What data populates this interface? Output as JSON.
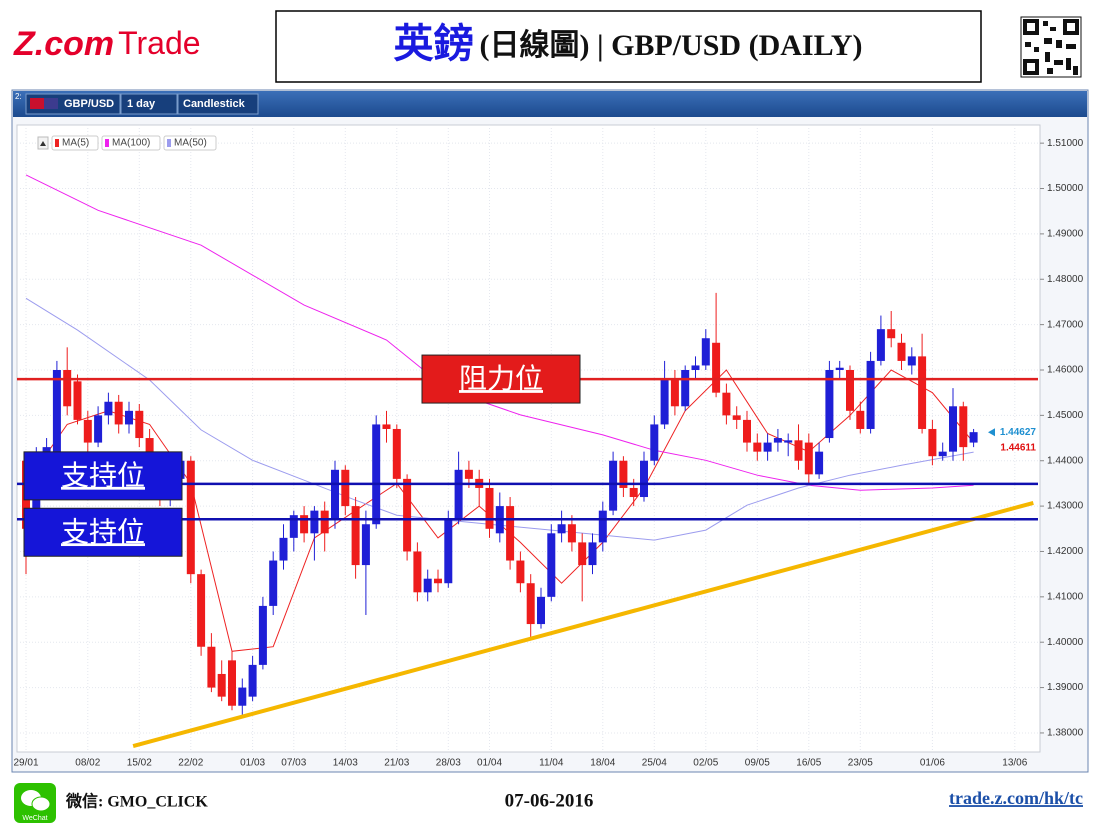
{
  "header": {
    "logo_z": "Z.com",
    "logo_trade": "Trade",
    "title_main": "英鎊",
    "title_sub": "(日線圖) | GBP/USD (DAILY)"
  },
  "toolbar": {
    "panel": "2:",
    "symbol": "GBP/USD",
    "interval": "1 day",
    "style": "Candlestick"
  },
  "chart_data": {
    "type": "candlestick",
    "categories": [
      "29/01",
      null,
      null,
      null,
      null,
      null,
      "08/02",
      null,
      null,
      null,
      null,
      "15/02",
      null,
      null,
      null,
      null,
      "22/02",
      null,
      null,
      null,
      null,
      null,
      "01/03",
      null,
      null,
      null,
      "07/03",
      null,
      null,
      null,
      null,
      "14/03",
      null,
      null,
      null,
      null,
      "21/03",
      null,
      null,
      null,
      null,
      "28/03",
      null,
      null,
      null,
      "01/04",
      null,
      null,
      null,
      null,
      null,
      "11/04",
      null,
      null,
      null,
      null,
      "18/04",
      null,
      null,
      null,
      null,
      "25/04",
      null,
      null,
      null,
      null,
      "02/05",
      null,
      null,
      null,
      null,
      "09/05",
      null,
      null,
      null,
      null,
      "16/05",
      null,
      null,
      null,
      null,
      "23/05",
      null,
      null,
      null,
      null,
      null,
      null,
      "01/06",
      null,
      null,
      null,
      null,
      null,
      null,
      null,
      "13/06"
    ],
    "open": [
      1.44,
      1.425,
      1.441,
      1.442,
      1.46,
      1.4575,
      1.449,
      1.444,
      1.45,
      1.453,
      1.448,
      1.451,
      1.445,
      1.44,
      1.432,
      1.436,
      1.44,
      1.415,
      1.399,
      1.393,
      1.396,
      1.386,
      1.388,
      1.395,
      1.408,
      1.418,
      1.423,
      1.428,
      1.424,
      1.429,
      1.427,
      1.438,
      1.43,
      1.417,
      1.426,
      1.448,
      1.447,
      1.436,
      1.42,
      1.411,
      1.414,
      1.413,
      1.427,
      1.438,
      1.436,
      1.434,
      1.424,
      1.43,
      1.418,
      1.413,
      1.404,
      1.41,
      1.424,
      1.426,
      1.422,
      1.417,
      1.422,
      1.429,
      1.44,
      1.434,
      1.432,
      1.44,
      1.448,
      1.458,
      1.452,
      1.46,
      1.461,
      1.466,
      1.455,
      1.45,
      1.449,
      1.444,
      1.442,
      1.444,
      1.444,
      1.4445,
      1.444,
      1.437,
      1.445,
      1.46,
      1.46,
      1.451,
      1.447,
      1.462,
      1.469,
      1.466,
      1.461,
      1.463,
      1.447,
      1.441,
      1.442,
      1.452,
      1.444,
      null,
      null,
      null,
      null
    ],
    "high": [
      1.441,
      1.443,
      1.445,
      1.462,
      1.465,
      1.459,
      1.451,
      1.452,
      1.455,
      1.4545,
      1.453,
      1.4525,
      1.447,
      1.442,
      1.438,
      1.442,
      1.441,
      1.416,
      1.402,
      1.396,
      1.398,
      1.392,
      1.397,
      1.41,
      1.42,
      1.426,
      1.429,
      1.43,
      1.43,
      1.431,
      1.44,
      1.439,
      1.432,
      1.429,
      1.45,
      1.451,
      1.448,
      1.437,
      1.422,
      1.416,
      1.416,
      1.429,
      1.442,
      1.44,
      1.438,
      1.436,
      1.433,
      1.432,
      1.42,
      1.415,
      1.412,
      1.426,
      1.429,
      1.428,
      1.424,
      1.424,
      1.431,
      1.442,
      1.441,
      1.436,
      1.442,
      1.45,
      1.462,
      1.46,
      1.461,
      1.463,
      1.469,
      1.477,
      1.457,
      1.452,
      1.451,
      1.446,
      1.446,
      1.447,
      1.446,
      1.448,
      1.446,
      1.444,
      1.462,
      1.462,
      1.461,
      1.453,
      1.464,
      1.472,
      1.473,
      1.468,
      1.465,
      1.468,
      1.449,
      1.444,
      1.456,
      1.453,
      1.447,
      null,
      null,
      null,
      null
    ],
    "low": [
      1.415,
      1.424,
      1.44,
      1.441,
      1.45,
      1.448,
      1.442,
      1.443,
      1.448,
      1.446,
      1.446,
      1.443,
      1.438,
      1.43,
      1.43,
      1.434,
      1.413,
      1.397,
      1.389,
      1.387,
      1.385,
      1.384,
      1.387,
      1.394,
      1.406,
      1.416,
      1.42,
      1.422,
      1.418,
      1.42,
      1.425,
      1.428,
      1.414,
      1.406,
      1.425,
      1.444,
      1.434,
      1.418,
      1.409,
      1.409,
      1.411,
      1.412,
      1.426,
      1.434,
      1.43,
      1.423,
      1.422,
      1.416,
      1.411,
      1.401,
      1.403,
      1.409,
      1.422,
      1.42,
      1.409,
      1.415,
      1.42,
      1.428,
      1.432,
      1.43,
      1.431,
      1.439,
      1.447,
      1.45,
      1.451,
      1.458,
      1.46,
      1.454,
      1.448,
      1.447,
      1.442,
      1.44,
      1.44,
      1.442,
      1.441,
      1.438,
      1.435,
      1.436,
      1.444,
      1.458,
      1.449,
      1.446,
      1.446,
      1.461,
      1.465,
      1.46,
      1.459,
      1.446,
      1.439,
      1.44,
      1.44,
      1.44,
      1.443,
      null,
      null,
      null,
      null
    ],
    "close": [
      1.425,
      1.442,
      1.443,
      1.46,
      1.452,
      1.449,
      1.444,
      1.45,
      1.453,
      1.448,
      1.451,
      1.445,
      1.44,
      1.432,
      1.436,
      1.44,
      1.415,
      1.399,
      1.39,
      1.388,
      1.386,
      1.39,
      1.395,
      1.408,
      1.418,
      1.423,
      1.428,
      1.424,
      1.429,
      1.424,
      1.438,
      1.43,
      1.417,
      1.426,
      1.448,
      1.447,
      1.436,
      1.42,
      1.411,
      1.414,
      1.413,
      1.427,
      1.438,
      1.436,
      1.434,
      1.425,
      1.43,
      1.418,
      1.413,
      1.404,
      1.41,
      1.424,
      1.426,
      1.422,
      1.417,
      1.422,
      1.429,
      1.44,
      1.434,
      1.432,
      1.44,
      1.448,
      1.458,
      1.452,
      1.46,
      1.461,
      1.467,
      1.455,
      1.45,
      1.449,
      1.444,
      1.442,
      1.444,
      1.445,
      1.4445,
      1.44,
      1.437,
      1.442,
      1.46,
      1.4605,
      1.451,
      1.447,
      1.462,
      1.469,
      1.467,
      1.462,
      1.463,
      1.447,
      1.441,
      1.442,
      1.452,
      1.443,
      1.4463,
      null,
      null,
      null,
      null
    ],
    "up_color": "#1f1fd6",
    "down_color": "#ee1c1c",
    "ylim": [
      1.3758,
      1.514
    ],
    "yticks": [
      {
        "value": 1.38,
        "label": "1.38000"
      },
      {
        "value": 1.39,
        "label": "1.39000"
      },
      {
        "value": 1.4,
        "label": "1.40000"
      },
      {
        "value": 1.41,
        "label": "1.41000"
      },
      {
        "value": 1.42,
        "label": "1.42000"
      },
      {
        "value": 1.43,
        "label": "1.43000"
      },
      {
        "value": 1.44,
        "label": "1.44000"
      },
      {
        "value": 1.45,
        "label": "1.45000"
      },
      {
        "value": 1.46,
        "label": "1.46000"
      },
      {
        "value": 1.47,
        "label": "1.47000"
      },
      {
        "value": 1.48,
        "label": "1.48000"
      },
      {
        "value": 1.49,
        "label": "1.49000"
      },
      {
        "value": 1.5,
        "label": "1.50000"
      },
      {
        "value": 1.51,
        "label": "1.51000"
      }
    ],
    "grid": true,
    "series": [
      {
        "name": "MA(5)",
        "color": "#ee2222",
        "x": [
          0,
          4,
          8,
          12,
          16,
          20,
          24,
          28,
          32,
          36,
          40,
          44,
          48,
          52,
          56,
          60,
          64,
          68,
          72,
          76,
          80,
          84,
          88,
          92
        ],
        "values": [
          1.435,
          1.448,
          1.451,
          1.448,
          1.435,
          1.398,
          1.399,
          1.423,
          1.429,
          1.435,
          1.423,
          1.43,
          1.422,
          1.413,
          1.422,
          1.434,
          1.451,
          1.46,
          1.446,
          1.442,
          1.45,
          1.46,
          1.455,
          1.444
        ]
      },
      {
        "name": "MA(100)",
        "color": "#ee22ee",
        "x": [
          0,
          7,
          17,
          27,
          35,
          41,
          48,
          56,
          61,
          66,
          71,
          76,
          81,
          88,
          92
        ],
        "values": [
          1.503,
          1.4952,
          1.4875,
          1.4743,
          1.4666,
          1.4556,
          1.4501,
          1.4457,
          1.4423,
          1.4401,
          1.4368,
          1.4346,
          1.4335,
          1.434,
          1.4346
        ]
      },
      {
        "name": "MA(50)",
        "color": "#9c9cee",
        "x": [
          0,
          5,
          12,
          17,
          22,
          27,
          32,
          36,
          41,
          46,
          51,
          56,
          61,
          66,
          70,
          75,
          80,
          85,
          92
        ],
        "values": [
          1.4758,
          1.4688,
          1.4578,
          1.4468,
          1.4401,
          1.4357,
          1.4313,
          1.428,
          1.4269,
          1.4258,
          1.4247,
          1.4236,
          1.4225,
          1.4247,
          1.4302,
          1.434,
          1.4368,
          1.439,
          1.4419
        ]
      }
    ],
    "levels": [
      {
        "label": "阻力位",
        "value": 1.458,
        "color": "#e02020"
      },
      {
        "label": "支持位",
        "value": 1.4349,
        "color": "#1010b0"
      },
      {
        "label": "支持位",
        "value": 1.4271,
        "color": "#1010b0"
      }
    ],
    "trendline": {
      "x": [
        10.4,
        97.8
      ],
      "y": [
        1.3771,
        1.4307
      ],
      "color": "#f5b700"
    },
    "price_labels": [
      {
        "value": 1.44627,
        "color": "#1e8fd0"
      },
      {
        "value": 1.44611,
        "color": "#e01010"
      }
    ]
  },
  "footer": {
    "wechat": "WeChat",
    "contact": "微信: GMO_CLICK",
    "date": "07-06-2016",
    "link": "trade.z.com/hk/tc"
  }
}
